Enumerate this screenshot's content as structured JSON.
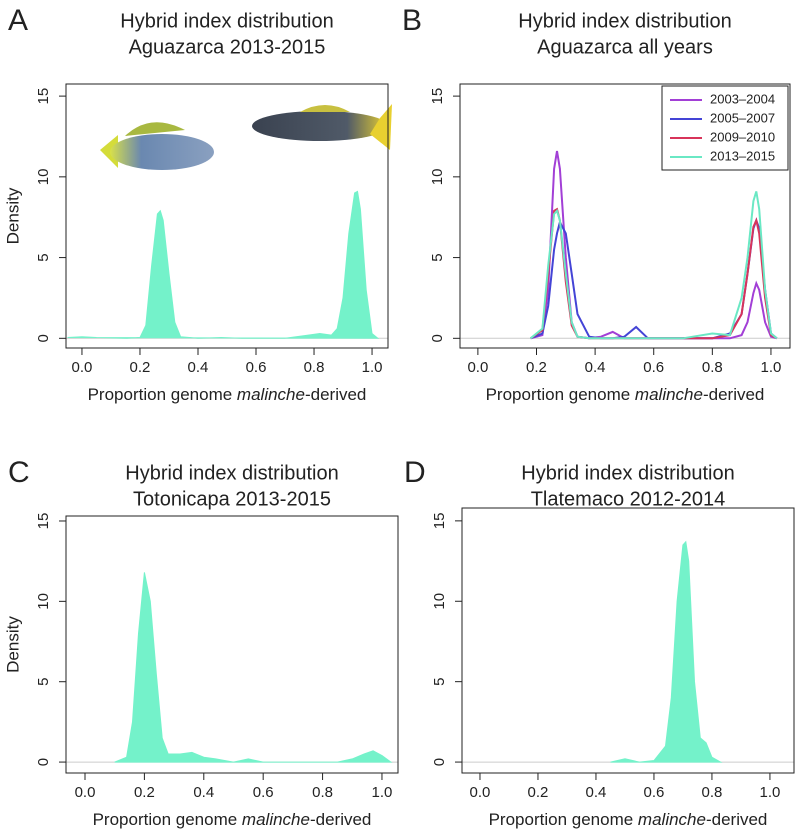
{
  "chart_data": [
    {
      "type": "area",
      "panel": "A",
      "title": [
        "Hybrid index distribution",
        "Aguazarca 2013-2015"
      ],
      "x_label": [
        "Proportion genome ",
        "malinche",
        "-derived"
      ],
      "y_label": "Density",
      "xlim": [
        -0.055,
        1.055
      ],
      "ylim": [
        -0.6,
        15.75
      ],
      "xticks": [
        {
          "value": 0,
          "label": "0.0"
        },
        0.2,
        0.4,
        0.6,
        0.8,
        {
          "value": 1,
          "label": "1.0"
        }
      ],
      "yticks": [
        0,
        5,
        10,
        15
      ],
      "color": "#74f2ca",
      "x": [
        -0.05,
        0,
        0.05,
        0.15,
        0.2,
        0.22,
        0.24,
        0.26,
        0.27,
        0.28,
        0.3,
        0.32,
        0.34,
        0.4,
        0.48,
        0.55,
        0.7,
        0.78,
        0.82,
        0.86,
        0.88,
        0.9,
        0.92,
        0.94,
        0.95,
        0.96,
        0.98,
        1.0,
        1.02
      ],
      "values": [
        0.05,
        0.1,
        0.05,
        0,
        0.05,
        0.8,
        4.5,
        7.7,
        7.9,
        7.3,
        4,
        1,
        0.1,
        0,
        0.05,
        0,
        0,
        0.2,
        0.3,
        0.2,
        0.6,
        2.5,
        6.5,
        9,
        9.1,
        8,
        3,
        0.3,
        0
      ]
    },
    {
      "type": "line",
      "panel": "B",
      "title": [
        "Hybrid index distribution",
        "Aguazarca all years"
      ],
      "x_label": [
        "Proportion genome ",
        "malinche",
        "-derived"
      ],
      "xlim": [
        -0.061,
        1.065
      ],
      "ylim": [
        -0.6,
        15.75
      ],
      "xticks": [
        {
          "value": 0,
          "label": "0.0"
        },
        0.2,
        0.4,
        0.6,
        0.8,
        {
          "value": 1,
          "label": "1.0"
        }
      ],
      "yticks": [
        0,
        5,
        10,
        15
      ],
      "legend": "topright",
      "x": [
        0.18,
        0.22,
        0.24,
        0.26,
        0.27,
        0.28,
        0.3,
        0.32,
        0.34,
        0.38,
        0.42,
        0.46,
        0.5,
        0.54,
        0.58,
        0.7,
        0.8,
        0.86,
        0.9,
        0.92,
        0.94,
        0.95,
        0.96,
        0.98,
        1.0,
        1.02
      ],
      "series": [
        {
          "name": "2003–2004",
          "color": "#a23fd6",
          "values": [
            0,
            0.2,
            3,
            10.5,
            11.6,
            10.5,
            5,
            1,
            0.1,
            0,
            0.1,
            0.4,
            0,
            0,
            0,
            0,
            0,
            0,
            0.2,
            1,
            2.8,
            3.4,
            3,
            1,
            0.1,
            0
          ]
        },
        {
          "name": "2005–2007",
          "color": "#4444d6",
          "values": [
            0,
            0.3,
            2,
            5.5,
            6.5,
            7.2,
            6.5,
            4,
            1.5,
            0.1,
            0,
            0,
            0.1,
            0.7,
            0,
            0,
            0,
            0.3,
            1.5,
            4,
            6.8,
            7.3,
            6.8,
            3,
            0.3,
            0
          ]
        },
        {
          "name": "2009–2010",
          "color": "#d8345a",
          "values": [
            0,
            0.5,
            4,
            7.9,
            8,
            7.3,
            3.5,
            0.8,
            0.1,
            0,
            0,
            0,
            0,
            0,
            0,
            0,
            0,
            0.2,
            1.5,
            4,
            6.9,
            7.3,
            6.5,
            2.5,
            0.2,
            0
          ]
        },
        {
          "name": "2013–2015",
          "color": "#6ae8c4",
          "values": [
            0,
            0.6,
            4.5,
            7.7,
            7.9,
            7.3,
            4,
            1,
            0.1,
            0,
            0,
            0,
            0,
            0,
            0,
            0,
            0.3,
            0.2,
            2.5,
            5,
            8.5,
            9.1,
            8,
            3,
            0.3,
            0
          ]
        }
      ]
    },
    {
      "type": "area",
      "panel": "C",
      "title": [
        "Hybrid index distribution",
        "Totonicapa 2013-2015"
      ],
      "x_label": [
        "Proportion genome ",
        "malinche",
        "-derived"
      ],
      "y_label": "Density",
      "xlim": [
        -0.064,
        1.054
      ],
      "ylim": [
        -0.68,
        15.31
      ],
      "xticks": [
        {
          "value": 0,
          "label": "0.0"
        },
        0.2,
        0.4,
        0.6,
        0.8,
        {
          "value": 1,
          "label": "1.0"
        }
      ],
      "yticks": [
        0,
        5,
        10,
        15
      ],
      "color": "#74f2ca",
      "x": [
        0.1,
        0.14,
        0.16,
        0.18,
        0.2,
        0.22,
        0.24,
        0.26,
        0.28,
        0.32,
        0.36,
        0.4,
        0.44,
        0.5,
        0.55,
        0.6,
        0.7,
        0.85,
        0.9,
        0.94,
        0.97,
        1.0,
        1.03
      ],
      "values": [
        0,
        0.3,
        2.5,
        8,
        11.8,
        10,
        5.5,
        1.5,
        0.5,
        0.5,
        0.6,
        0.3,
        0.2,
        0,
        0.2,
        0,
        0,
        0,
        0.2,
        0.5,
        0.7,
        0.4,
        0
      ]
    },
    {
      "type": "area",
      "panel": "D",
      "title": [
        "Hybrid index distribution",
        "Tlatemaco 2012-2014"
      ],
      "x_label": [
        "Proportion genome ",
        "malinche",
        "-derived"
      ],
      "xlim": [
        -0.062,
        1.083
      ],
      "ylim": [
        -0.68,
        15.8
      ],
      "xticks": [
        {
          "value": 0,
          "label": "0.0"
        },
        0.2,
        0.4,
        0.6,
        0.8,
        {
          "value": 1,
          "label": "1.0"
        }
      ],
      "yticks": [
        0,
        5,
        10,
        15
      ],
      "color": "#74f2ca",
      "x": [
        0.45,
        0.5,
        0.55,
        0.6,
        0.64,
        0.66,
        0.68,
        0.7,
        0.71,
        0.72,
        0.74,
        0.76,
        0.78,
        0.8,
        0.83
      ],
      "values": [
        0,
        0.2,
        0,
        0.1,
        1,
        4,
        10,
        13.5,
        13.7,
        12.5,
        5,
        1.5,
        1.2,
        0.3,
        0
      ]
    }
  ]
}
